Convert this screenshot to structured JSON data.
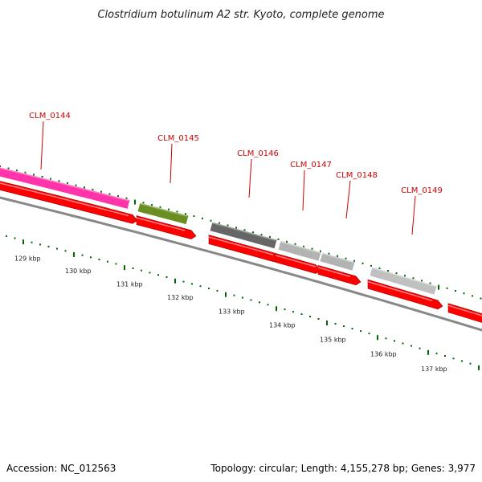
{
  "title": "Clostridium botulinum A2 str. Kyoto, complete genome",
  "footer": {
    "accession": "Accession: NC_012563",
    "summary": "Topology: circular; Length: 4,155,278 bp; Genes: 3,977"
  },
  "genes": [
    {
      "label": "CLM_0144",
      "color": "#ff33aa"
    },
    {
      "label": "CLM_0145",
      "color": "#6b8e23"
    },
    {
      "label": "CLM_0146",
      "color": "#666666"
    },
    {
      "label": "CLM_0147",
      "color": "#b3b3b3"
    },
    {
      "label": "CLM_0148",
      "color": "#b3b3b3"
    },
    {
      "label": "CLM_0149",
      "color": "#c0c0c0"
    }
  ],
  "scale_labels": [
    "129 kbp",
    "130 kbp",
    "131 kbp",
    "132 kbp",
    "133 kbp",
    "134 kbp",
    "135 kbp",
    "136 kbp",
    "137 kbp"
  ],
  "colors": {
    "cds": "#ff0000",
    "backbone": "#888888",
    "tick": "#006600",
    "label": "#cc0000"
  }
}
